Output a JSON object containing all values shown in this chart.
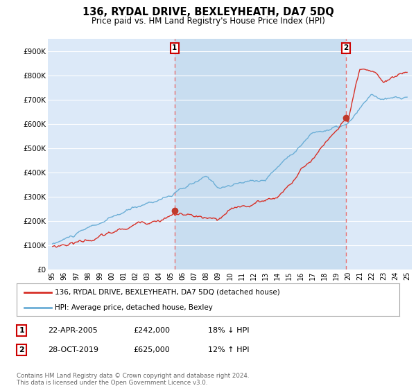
{
  "title": "136, RYDAL DRIVE, BEXLEYHEATH, DA7 5DQ",
  "subtitle": "Price paid vs. HM Land Registry's House Price Index (HPI)",
  "background_color": "#ffffff",
  "plot_bg_color": "#dce9f8",
  "highlight_bg_color": "#c8ddf0",
  "grid_color": "#ffffff",
  "hpi_color": "#6baed6",
  "price_color": "#d73027",
  "marker_color": "#c0392b",
  "vline_color": "#e87070",
  "ylim": [
    0,
    950000
  ],
  "yticks": [
    0,
    100000,
    200000,
    300000,
    400000,
    500000,
    600000,
    700000,
    800000,
    900000
  ],
  "ytick_labels": [
    "£0",
    "£100K",
    "£200K",
    "£300K",
    "£400K",
    "£500K",
    "£600K",
    "£700K",
    "£800K",
    "£900K"
  ],
  "sale1_year": 2005.33,
  "sale2_year": 2019.83,
  "sale1_price": 242000,
  "sale2_price": 625000,
  "legend_entry1": "136, RYDAL DRIVE, BEXLEYHEATH, DA7 5DQ (detached house)",
  "legend_entry2": "HPI: Average price, detached house, Bexley",
  "table_row1": [
    "1",
    "22-APR-2005",
    "£242,000",
    "18% ↓ HPI"
  ],
  "table_row2": [
    "2",
    "28-OCT-2019",
    "£625,000",
    "12% ↑ HPI"
  ],
  "footer": "Contains HM Land Registry data © Crown copyright and database right 2024.\nThis data is licensed under the Open Government Licence v3.0.",
  "xtick_labels": [
    "95",
    "96",
    "97",
    "98",
    "99",
    "00",
    "01",
    "02",
    "03",
    "04",
    "05",
    "06",
    "07",
    "08",
    "09",
    "10",
    "11",
    "12",
    "13",
    "14",
    "15",
    "16",
    "17",
    "18",
    "19",
    "20",
    "21",
    "22",
    "23",
    "24",
    "25"
  ]
}
